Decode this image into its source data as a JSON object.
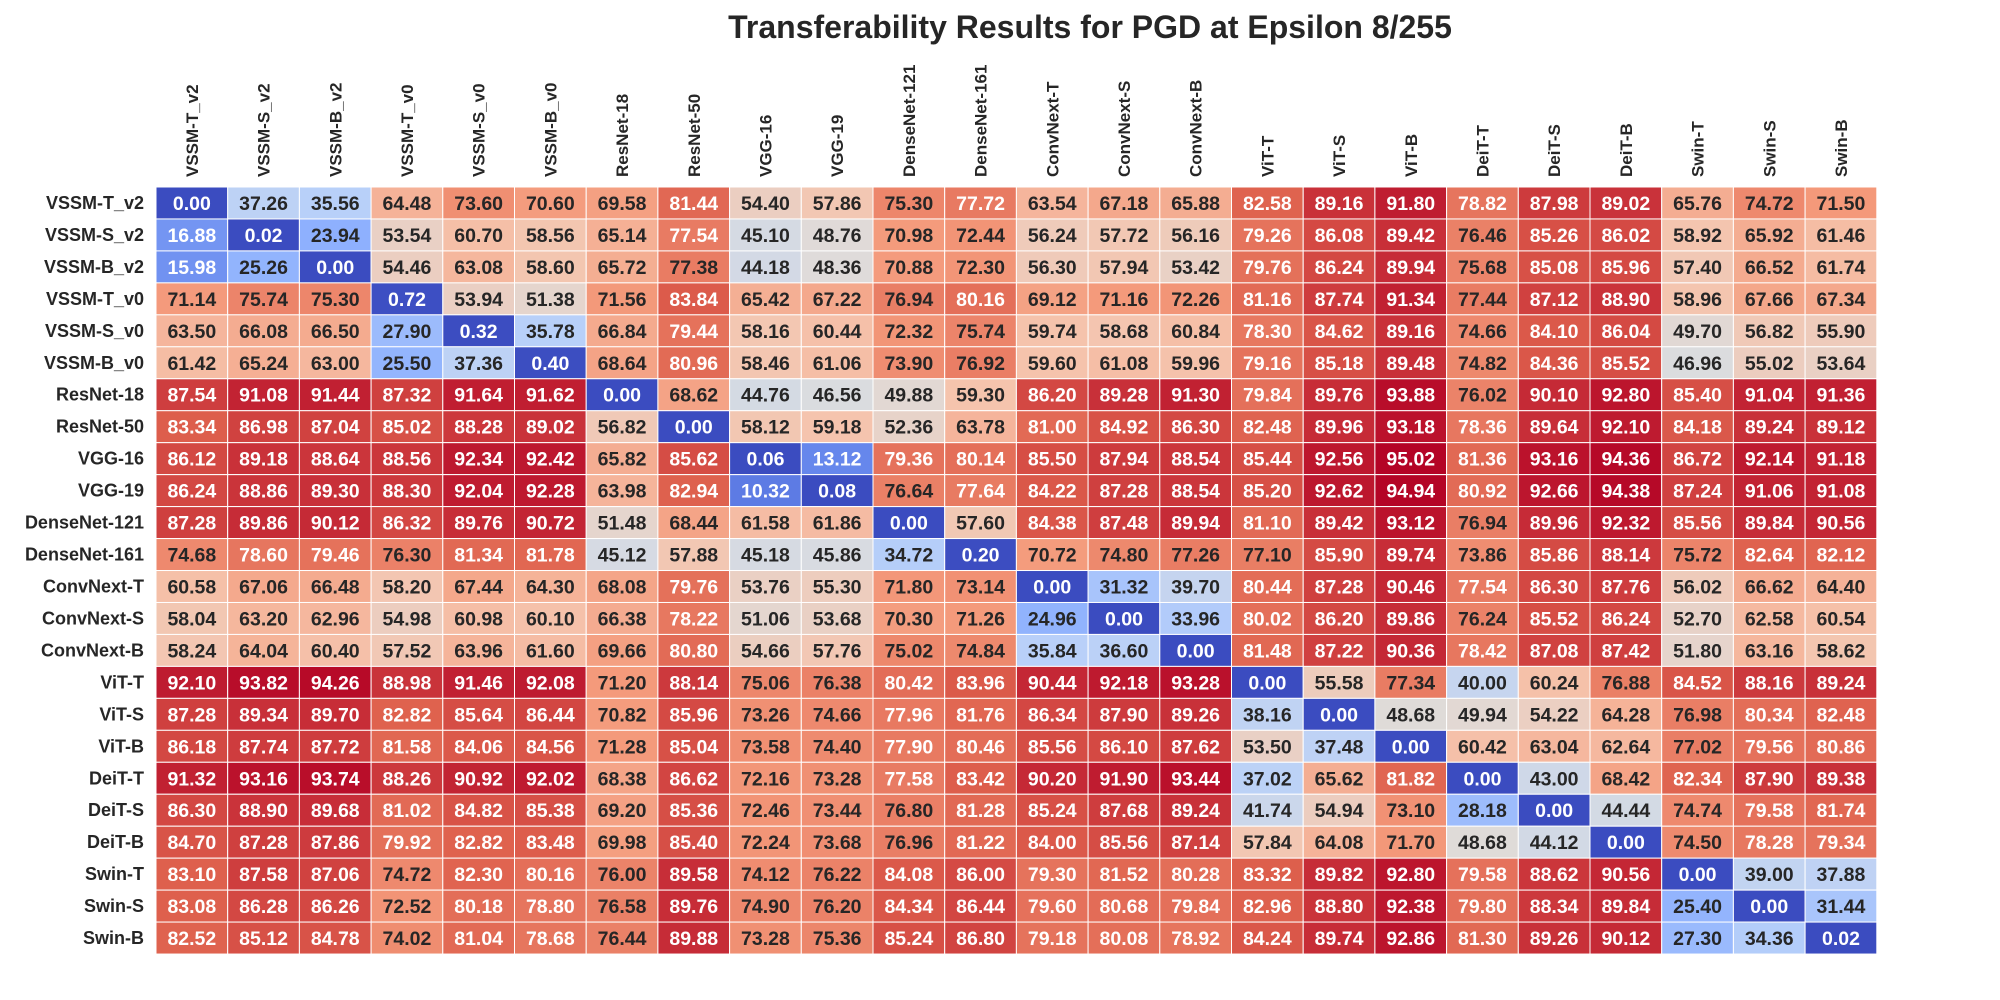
{
  "chart_data": {
    "type": "heatmap",
    "title": "Transferability Results for PGD at Epsilon 8/255",
    "xlabel": "",
    "ylabel": "",
    "colormap": "coolwarm",
    "vmin": 0,
    "vmax": 95.02,
    "columns": [
      "VSSM-T_v2",
      "VSSM-S_v2",
      "VSSM-B_v2",
      "VSSM-T_v0",
      "VSSM-S_v0",
      "VSSM-B_v0",
      "ResNet-18",
      "ResNet-50",
      "VGG-16",
      "VGG-19",
      "DenseNet-121",
      "DenseNet-161",
      "ConvNext-T",
      "ConvNext-S",
      "ConvNext-B",
      "ViT-T",
      "ViT-S",
      "ViT-B",
      "DeiT-T",
      "DeiT-S",
      "DeiT-B",
      "Swin-T",
      "Swin-S",
      "Swin-B"
    ],
    "rows": [
      "VSSM-T_v2",
      "VSSM-S_v2",
      "VSSM-B_v2",
      "VSSM-T_v0",
      "VSSM-S_v0",
      "VSSM-B_v0",
      "ResNet-18",
      "ResNet-50",
      "VGG-16",
      "VGG-19",
      "DenseNet-121",
      "DenseNet-161",
      "ConvNext-T",
      "ConvNext-S",
      "ConvNext-B",
      "ViT-T",
      "ViT-S",
      "ViT-B",
      "DeiT-T",
      "DeiT-S",
      "DeiT-B",
      "Swin-T",
      "Swin-S",
      "Swin-B"
    ],
    "values": [
      [
        "0.00",
        "37.26",
        "35.56",
        "64.48",
        "73.60",
        "70.60",
        "69.58",
        "81.44",
        "54.40",
        "57.86",
        "75.30",
        "77.72",
        "63.54",
        "67.18",
        "65.88",
        "82.58",
        "89.16",
        "91.80",
        "78.82",
        "87.98",
        "89.02",
        "65.76",
        "74.72",
        "71.50"
      ],
      [
        "16.88",
        "0.02",
        "23.94",
        "53.54",
        "60.70",
        "58.56",
        "65.14",
        "77.54",
        "45.10",
        "48.76",
        "70.98",
        "72.44",
        "56.24",
        "57.72",
        "56.16",
        "79.26",
        "86.08",
        "89.42",
        "76.46",
        "85.26",
        "86.02",
        "58.92",
        "65.92",
        "61.46"
      ],
      [
        "15.98",
        "25.26",
        "0.00",
        "54.46",
        "63.08",
        "58.60",
        "65.72",
        "77.38",
        "44.18",
        "48.36",
        "70.88",
        "72.30",
        "56.30",
        "57.94",
        "53.42",
        "79.76",
        "86.24",
        "89.94",
        "75.68",
        "85.08",
        "85.96",
        "57.40",
        "66.52",
        "61.74"
      ],
      [
        "71.14",
        "75.74",
        "75.30",
        "0.72",
        "53.94",
        "51.38",
        "71.56",
        "83.84",
        "65.42",
        "67.22",
        "76.94",
        "80.16",
        "69.12",
        "71.16",
        "72.26",
        "81.16",
        "87.74",
        "91.34",
        "77.44",
        "87.12",
        "88.90",
        "58.96",
        "67.66",
        "67.34"
      ],
      [
        "63.50",
        "66.08",
        "66.50",
        "27.90",
        "0.32",
        "35.78",
        "66.84",
        "79.44",
        "58.16",
        "60.44",
        "72.32",
        "75.74",
        "59.74",
        "58.68",
        "60.84",
        "78.30",
        "84.62",
        "89.16",
        "74.66",
        "84.10",
        "86.04",
        "49.70",
        "56.82",
        "55.90"
      ],
      [
        "61.42",
        "65.24",
        "63.00",
        "25.50",
        "37.36",
        "0.40",
        "68.64",
        "80.96",
        "58.46",
        "61.06",
        "73.90",
        "76.92",
        "59.60",
        "61.08",
        "59.96",
        "79.16",
        "85.18",
        "89.48",
        "74.82",
        "84.36",
        "85.52",
        "46.96",
        "55.02",
        "53.64"
      ],
      [
        "87.54",
        "91.08",
        "91.44",
        "87.32",
        "91.64",
        "91.62",
        "0.00",
        "68.62",
        "44.76",
        "46.56",
        "49.88",
        "59.30",
        "86.20",
        "89.28",
        "91.30",
        "79.84",
        "89.76",
        "93.88",
        "76.02",
        "90.10",
        "92.80",
        "85.40",
        "91.04",
        "91.36"
      ],
      [
        "83.34",
        "86.98",
        "87.04",
        "85.02",
        "88.28",
        "89.02",
        "56.82",
        "0.00",
        "58.12",
        "59.18",
        "52.36",
        "63.78",
        "81.00",
        "84.92",
        "86.30",
        "82.48",
        "89.96",
        "93.18",
        "78.36",
        "89.64",
        "92.10",
        "84.18",
        "89.24",
        "89.12"
      ],
      [
        "86.12",
        "89.18",
        "88.64",
        "88.56",
        "92.34",
        "92.42",
        "65.82",
        "85.62",
        "0.06",
        "13.12",
        "79.36",
        "80.14",
        "85.50",
        "87.94",
        "88.54",
        "85.44",
        "92.56",
        "95.02",
        "81.36",
        "93.16",
        "94.36",
        "86.72",
        "92.14",
        "91.18"
      ],
      [
        "86.24",
        "88.86",
        "89.30",
        "88.30",
        "92.04",
        "92.28",
        "63.98",
        "82.94",
        "10.32",
        "0.08",
        "76.64",
        "77.64",
        "84.22",
        "87.28",
        "88.54",
        "85.20",
        "92.62",
        "94.94",
        "80.92",
        "92.66",
        "94.38",
        "87.24",
        "91.06",
        "91.08"
      ],
      [
        "87.28",
        "89.86",
        "90.12",
        "86.32",
        "89.76",
        "90.72",
        "51.48",
        "68.44",
        "61.58",
        "61.86",
        "0.00",
        "57.60",
        "84.38",
        "87.48",
        "89.94",
        "81.10",
        "89.42",
        "93.12",
        "76.94",
        "89.96",
        "92.32",
        "85.56",
        "89.84",
        "90.56"
      ],
      [
        "74.68",
        "78.60",
        "79.46",
        "76.30",
        "81.34",
        "81.78",
        "45.12",
        "57.88",
        "45.18",
        "45.86",
        "34.72",
        "0.20",
        "70.72",
        "74.80",
        "77.26",
        "77.10",
        "85.90",
        "89.74",
        "73.86",
        "85.86",
        "88.14",
        "75.72",
        "82.64",
        "82.12"
      ],
      [
        "60.58",
        "67.06",
        "66.48",
        "58.20",
        "67.44",
        "64.30",
        "68.08",
        "79.76",
        "53.76",
        "55.30",
        "71.80",
        "73.14",
        "0.00",
        "31.32",
        "39.70",
        "80.44",
        "87.28",
        "90.46",
        "77.54",
        "86.30",
        "87.76",
        "56.02",
        "66.62",
        "64.40"
      ],
      [
        "58.04",
        "63.20",
        "62.96",
        "54.98",
        "60.98",
        "60.10",
        "66.38",
        "78.22",
        "51.06",
        "53.68",
        "70.30",
        "71.26",
        "24.96",
        "0.00",
        "33.96",
        "80.02",
        "86.20",
        "89.86",
        "76.24",
        "85.52",
        "86.24",
        "52.70",
        "62.58",
        "60.54"
      ],
      [
        "58.24",
        "64.04",
        "60.40",
        "57.52",
        "63.96",
        "61.60",
        "69.66",
        "80.80",
        "54.66",
        "57.76",
        "75.02",
        "74.84",
        "35.84",
        "36.60",
        "0.00",
        "81.48",
        "87.22",
        "90.36",
        "78.42",
        "87.08",
        "87.42",
        "51.80",
        "63.16",
        "58.62"
      ],
      [
        "92.10",
        "93.82",
        "94.26",
        "88.98",
        "91.46",
        "92.08",
        "71.20",
        "88.14",
        "75.06",
        "76.38",
        "80.42",
        "83.96",
        "90.44",
        "92.18",
        "93.28",
        "0.00",
        "55.58",
        "77.34",
        "40.00",
        "60.24",
        "76.88",
        "84.52",
        "88.16",
        "89.24"
      ],
      [
        "87.28",
        "89.34",
        "89.70",
        "82.82",
        "85.64",
        "86.44",
        "70.82",
        "85.96",
        "73.26",
        "74.66",
        "77.96",
        "81.76",
        "86.34",
        "87.90",
        "89.26",
        "38.16",
        "0.00",
        "48.68",
        "49.94",
        "54.22",
        "64.28",
        "76.98",
        "80.34",
        "82.48"
      ],
      [
        "86.18",
        "87.74",
        "87.72",
        "81.58",
        "84.06",
        "84.56",
        "71.28",
        "85.04",
        "73.58",
        "74.40",
        "77.90",
        "80.46",
        "85.56",
        "86.10",
        "87.62",
        "53.50",
        "37.48",
        "0.00",
        "60.42",
        "63.04",
        "62.64",
        "77.02",
        "79.56",
        "80.86"
      ],
      [
        "91.32",
        "93.16",
        "93.74",
        "88.26",
        "90.92",
        "92.02",
        "68.38",
        "86.62",
        "72.16",
        "73.28",
        "77.58",
        "83.42",
        "90.20",
        "91.90",
        "93.44",
        "37.02",
        "65.62",
        "81.82",
        "0.00",
        "43.00",
        "68.42",
        "82.34",
        "87.90",
        "89.38"
      ],
      [
        "86.30",
        "88.90",
        "89.68",
        "81.02",
        "84.82",
        "85.38",
        "69.20",
        "85.36",
        "72.46",
        "73.44",
        "76.80",
        "81.28",
        "85.24",
        "87.68",
        "89.24",
        "41.74",
        "54.94",
        "73.10",
        "28.18",
        "0.00",
        "44.44",
        "74.74",
        "79.58",
        "81.74"
      ],
      [
        "84.70",
        "87.28",
        "87.86",
        "79.92",
        "82.82",
        "83.48",
        "69.98",
        "85.40",
        "72.24",
        "73.68",
        "76.96",
        "81.22",
        "84.00",
        "85.56",
        "87.14",
        "57.84",
        "64.08",
        "71.70",
        "48.68",
        "44.12",
        "0.00",
        "74.50",
        "78.28",
        "79.34"
      ],
      [
        "83.10",
        "87.58",
        "87.06",
        "74.72",
        "82.30",
        "80.16",
        "76.00",
        "89.58",
        "74.12",
        "76.22",
        "84.08",
        "86.00",
        "79.30",
        "81.52",
        "80.28",
        "83.32",
        "89.82",
        "92.80",
        "79.58",
        "88.62",
        "90.56",
        "0.00",
        "39.00",
        "37.88"
      ],
      [
        "83.08",
        "86.28",
        "86.26",
        "72.52",
        "80.18",
        "78.80",
        "76.58",
        "89.76",
        "74.90",
        "76.20",
        "84.34",
        "86.44",
        "79.60",
        "80.68",
        "79.84",
        "82.96",
        "88.80",
        "92.38",
        "79.80",
        "88.34",
        "89.84",
        "25.40",
        "0.00",
        "31.44"
      ],
      [
        "82.52",
        "85.12",
        "84.78",
        "74.02",
        "81.04",
        "78.68",
        "76.44",
        "89.88",
        "73.28",
        "75.36",
        "85.24",
        "86.80",
        "79.18",
        "80.08",
        "78.92",
        "84.24",
        "89.74",
        "92.86",
        "81.30",
        "89.26",
        "90.12",
        "27.30",
        "34.36",
        "0.02"
      ]
    ]
  }
}
